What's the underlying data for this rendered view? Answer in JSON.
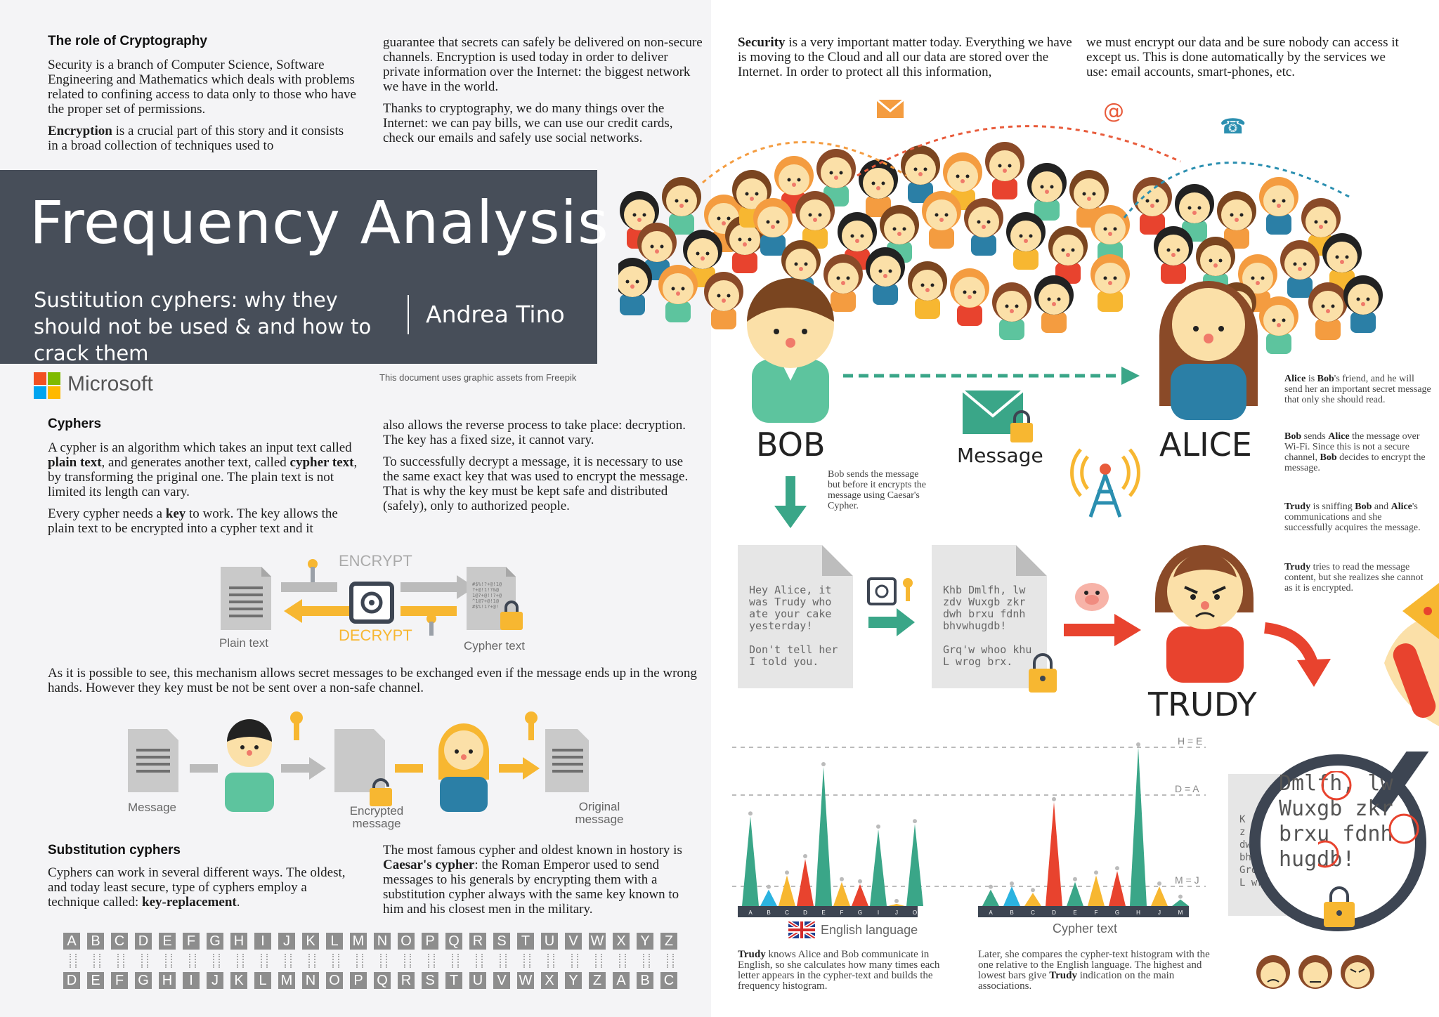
{
  "intro": {
    "heading": "The role of Cryptography",
    "p1": "Security is a branch of Computer Science, Software Engineering and Mathematics which deals with problems related to confining access to data only to those who have the proper set of permissions.",
    "p2_bold": "Encryption",
    "p2_rest": " is a crucial part of this story and it consists in a broad collection of techniques used to",
    "p3": "guarantee that secrets can safely be delivered on non-secure channels. Encryption is used today in order to deliver private information over the Internet: the biggest network we have in the world.",
    "p4": "Thanks to cryptography, we do many things over the Internet: we can pay bills, we can use our credit cards, check our emails and safely use social networks."
  },
  "security": {
    "p1_bold": "Security",
    "p1_rest": " is a very important matter today. Everything we have is moving to the Cloud and all our data are stored over the Internet. In order to protect all this information,",
    "p2": "we must encrypt our data and be sure nobody can access it except us. This is done automatically by the services we use: email accounts, smart-phones, etc."
  },
  "banner": {
    "title": "Frequency Analysis",
    "subtitle": "Sustitution cyphers: why they should not be used & and how to crack them",
    "author": "Andrea Tino"
  },
  "brand": {
    "name": "Microsoft",
    "colors": [
      "#f25022",
      "#7fba00",
      "#00a4ef",
      "#ffb900"
    ],
    "credit": "This document uses graphic assets from Freepik"
  },
  "cyphers": {
    "heading": "Cyphers",
    "p1": [
      {
        "t": "A cypher is an algorithm which takes an input text called "
      },
      {
        "t": "plain text",
        "b": true
      },
      {
        "t": ", and generates another text, called "
      },
      {
        "t": "cypher text",
        "b": true
      },
      {
        "t": ", by transforming the priginal one. The plain text is not limited its length can vary."
      }
    ],
    "p2": [
      {
        "t": "Every cypher needs a "
      },
      {
        "t": "key",
        "b": true
      },
      {
        "t": " to work. The key allows the plain text to be encrypted into a cypher text and it"
      }
    ],
    "p3": "also allows the reverse process to take place: decryption. The key has a fixed size, it cannot vary.",
    "p4": "To successfully decrypt a message, it is necessary to use the same exact key that was used to encrypt the message. That is why the key must be kept safe and distributed (safely), only to authorized people."
  },
  "diagram1": {
    "encrypt": "ENCRYPT",
    "decrypt": "DECRYPT",
    "plain": "Plain text",
    "cypher": "Cypher text",
    "caption": "As it is possible to see, this mechanism allows secret messages to be exchanged even if the message ends up in the wrong hands. However they key must be not be sent over a non-safe channel."
  },
  "diagram2": {
    "message": "Message",
    "encrypted": "Encrypted message",
    "original": "Original message"
  },
  "substitution": {
    "heading": "Substitution cyphers",
    "p1": [
      {
        "t": "Cyphers can work in several different ways. The oldest, and today least secure, type of cyphers employ a technique called: "
      },
      {
        "t": "key-replacement",
        "b": true
      },
      {
        "t": "."
      }
    ],
    "p2": [
      {
        "t": "The most famous cypher and oldest known in hostory is "
      },
      {
        "t": "Caesar's cypher",
        "b": true
      },
      {
        "t": ": the Roman Emperor used to send messages to his generals by encrypting them with a substitution cypher always with the same key known to him and his closest men in the military."
      }
    ],
    "plain_row": [
      "A",
      "B",
      "C",
      "D",
      "E",
      "F",
      "G",
      "H",
      "I",
      "J",
      "K",
      "L",
      "M",
      "N",
      "O",
      "P",
      "Q",
      "R",
      "S",
      "T",
      "U",
      "V",
      "W",
      "X",
      "Y",
      "Z"
    ],
    "cypher_row": [
      "D",
      "E",
      "F",
      "G",
      "H",
      "I",
      "J",
      "K",
      "L",
      "M",
      "N",
      "O",
      "P",
      "Q",
      "R",
      "S",
      "T",
      "U",
      "V",
      "W",
      "X",
      "Y",
      "Z",
      "A",
      "B",
      "C"
    ]
  },
  "story": {
    "bob": "BOB",
    "alice": "ALICE",
    "trudy": "TRUDY",
    "message": "Message",
    "bob_note": "Bob sends the message but before it encrypts the message using Caesar's Cypher.",
    "plain_msg": [
      "Hey Alice, it",
      "was Trudy who",
      "ate your cake",
      "yesterday!",
      "",
      "Don't tell her",
      "I told you."
    ],
    "cypher_msg": [
      "Khb Dmlfh, lw",
      "zdv Wuxgb zkr",
      "dwh brxu fdnh",
      "bhvwhugdb!",
      "",
      "Grq'w whoo khu",
      "L wrog brx."
    ],
    "magnified": [
      "Dmlfh, lw",
      "Wuxgb zkr",
      "brxu fdnh",
      "hugdb!"
    ],
    "magnified_left": [
      "K",
      "z",
      "dw",
      "bhv",
      "Grq'w",
      "L wrog brx."
    ],
    "side_notes": [
      [
        {
          "t": "Alice",
          "b": true
        },
        {
          "t": " is "
        },
        {
          "t": "Bob",
          "b": true
        },
        {
          "t": "'s friend, and he will send her an important secret message that only she should read."
        }
      ],
      [
        {
          "t": "Bob",
          "b": true
        },
        {
          "t": " sends "
        },
        {
          "t": "Alice",
          "b": true
        },
        {
          "t": " the message over Wi-Fi. Since this is not a secure channel, "
        },
        {
          "t": "Bob",
          "b": true
        },
        {
          "t": " decides to encrypt the message."
        }
      ],
      [
        {
          "t": "Trudy",
          "b": true
        },
        {
          "t": " is sniffing "
        },
        {
          "t": "Bob",
          "b": true
        },
        {
          "t": " and "
        },
        {
          "t": "Alice",
          "b": true
        },
        {
          "t": "'s communications and she successfully acquires the message."
        }
      ],
      [
        {
          "t": "Trudy",
          "b": true
        },
        {
          "t": " tries to read the message content, but she realizes she cannot as it is encrypted."
        }
      ]
    ]
  },
  "histogram": {
    "labels": {
      "he": "H = E",
      "da": "D = A",
      "mj": "M = J"
    },
    "english_label": "English language",
    "cypher_label": "Cypher text",
    "note1": [
      {
        "t": "Trudy",
        "b": true
      },
      {
        "t": " knows Alice and Bob communicate in English, so she calculates how many times each letter appears in the cypher-text and builds the frequency histogram."
      }
    ],
    "note2": [
      {
        "t": "Later, she compares the cypher-text histogram with the one relative to the English language. The highest and lowest bars give "
      },
      {
        "t": "Trudy",
        "b": true
      },
      {
        "t": " indication on the main associations."
      }
    ]
  },
  "chart_data": [
    {
      "type": "bar",
      "title": "English language",
      "categories": [
        "A",
        "B",
        "C",
        "D",
        "E",
        "F",
        "G",
        "I",
        "J",
        "O"
      ],
      "values": [
        8.2,
        1.5,
        2.8,
        4.3,
        12.7,
        2.2,
        2.0,
        7.0,
        0.2,
        7.5
      ]
    },
    {
      "type": "bar",
      "title": "Cypher text",
      "categories": [
        "A",
        "B",
        "C",
        "D",
        "E",
        "F",
        "G",
        "H",
        "J",
        "M"
      ],
      "values": [
        1.5,
        1.8,
        1.2,
        9.5,
        2.2,
        2.8,
        3.2,
        14.5,
        1.8,
        0.6
      ]
    }
  ]
}
